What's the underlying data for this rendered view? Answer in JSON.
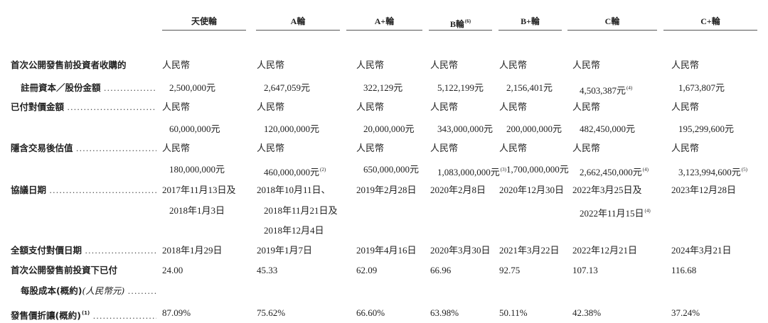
{
  "headers": [
    {
      "label": "天使輪",
      "sup": ""
    },
    {
      "label": "A輪",
      "sup": ""
    },
    {
      "label": "A+輪",
      "sup": ""
    },
    {
      "label": "B輪",
      "sup": "(6)"
    },
    {
      "label": "B+輪",
      "sup": ""
    },
    {
      "label": "C輪",
      "sup": ""
    },
    {
      "label": "C+輪",
      "sup": ""
    }
  ],
  "lines": [
    {
      "label": "首次公開發售前投資者收購的",
      "dots": false,
      "indent": false,
      "cells": [
        {
          "t": "人民幣"
        },
        {
          "t": "人民幣"
        },
        {
          "t": "人民幣"
        },
        {
          "t": "人民幣"
        },
        {
          "t": "人民幣"
        },
        {
          "t": "人民幣"
        },
        {
          "t": "人民幣"
        }
      ]
    },
    {
      "label": "註冊資本／股份金額",
      "dots": true,
      "indent": true,
      "cells": [
        {
          "t": "2,500,000元",
          "ind": true
        },
        {
          "t": "2,647,059元",
          "ind": true
        },
        {
          "t": "322,129元",
          "ind": true
        },
        {
          "t": "5,122,199元",
          "ind": true
        },
        {
          "t": "2,156,401元",
          "ind": true
        },
        {
          "t": "4,503,387元",
          "sup": "(4)",
          "ind": true
        },
        {
          "t": "1,673,807元",
          "ind": true
        }
      ]
    },
    {
      "label": "已付對價金額",
      "dots": true,
      "indent": false,
      "cells": [
        {
          "t": "人民幣"
        },
        {
          "t": "人民幣"
        },
        {
          "t": "人民幣"
        },
        {
          "t": "人民幣"
        },
        {
          "t": "人民幣"
        },
        {
          "t": "人民幣"
        },
        {
          "t": "人民幣"
        }
      ]
    },
    {
      "label": "",
      "dots": false,
      "indent": false,
      "cells": [
        {
          "t": "60,000,000元",
          "ind": true
        },
        {
          "t": "120,000,000元",
          "ind": true
        },
        {
          "t": "20,000,000元",
          "ind": true
        },
        {
          "t": "343,000,000元",
          "ind": true
        },
        {
          "t": "200,000,000元",
          "ind": true
        },
        {
          "t": "482,450,000元",
          "ind": true
        },
        {
          "t": "195,299,600元",
          "ind": true
        }
      ]
    },
    {
      "label": "隱含交易後估值",
      "dots": true,
      "indent": false,
      "cells": [
        {
          "t": "人民幣"
        },
        {
          "t": "人民幣"
        },
        {
          "t": "人民幣"
        },
        {
          "t": "人民幣"
        },
        {
          "t": "人民幣"
        },
        {
          "t": "人民幣"
        },
        {
          "t": "人民幣"
        }
      ]
    },
    {
      "label": "",
      "dots": false,
      "indent": false,
      "cells": [
        {
          "t": "180,000,000元",
          "ind": true
        },
        {
          "t": "460,000,000元",
          "sup": "(2)",
          "ind": true
        },
        {
          "t": "650,000,000元",
          "ind": true
        },
        {
          "t": "1,083,000,000元",
          "sup": "(3)",
          "ind": true
        },
        {
          "t": "1,700,000,000元",
          "ind": true
        },
        {
          "t": "2,662,450,000元",
          "sup": "(4)",
          "ind": true
        },
        {
          "t": "3,123,994,600元",
          "sup": "(5)",
          "ind": true
        }
      ]
    },
    {
      "label": "協議日期",
      "dots": true,
      "indent": false,
      "cells": [
        {
          "t": "2017年11月13日及"
        },
        {
          "t": "2018年10月11日、"
        },
        {
          "t": "2019年2月28日"
        },
        {
          "t": "2020年2月8日"
        },
        {
          "t": "2020年12月30日"
        },
        {
          "t": "2022年3月25日及"
        },
        {
          "t": "2023年12月28日"
        }
      ]
    },
    {
      "label": "",
      "dots": false,
      "indent": false,
      "cells": [
        {
          "t": "2018年1月3日",
          "ind": true
        },
        {
          "t": "2018年11月21日及",
          "ind": true
        },
        {
          "t": ""
        },
        {
          "t": ""
        },
        {
          "t": ""
        },
        {
          "t": "2022年11月15日",
          "sup": "(4)",
          "ind": true
        },
        {
          "t": ""
        }
      ]
    },
    {
      "label": "",
      "dots": false,
      "indent": false,
      "cells": [
        {
          "t": ""
        },
        {
          "t": "2018年12月4日",
          "ind": true
        },
        {
          "t": ""
        },
        {
          "t": ""
        },
        {
          "t": ""
        },
        {
          "t": ""
        },
        {
          "t": ""
        }
      ]
    },
    {
      "label": "全額支付對價日期",
      "dots": true,
      "indent": false,
      "cells": [
        {
          "t": "2018年1月29日"
        },
        {
          "t": "2019年1月7日"
        },
        {
          "t": "2019年4月16日"
        },
        {
          "t": "2020年3月30日"
        },
        {
          "t": "2021年3月22日"
        },
        {
          "t": "2022年12月21日"
        },
        {
          "t": "2024年3月21日"
        }
      ]
    },
    {
      "label": "首次公開發售前投資下已付",
      "dots": false,
      "indent": false,
      "cells": [
        {
          "t": "24.00"
        },
        {
          "t": "45.33"
        },
        {
          "t": "62.09"
        },
        {
          "t": "66.96"
        },
        {
          "t": "92.75"
        },
        {
          "t": "107.13"
        },
        {
          "t": "116.68"
        }
      ]
    },
    {
      "label": "每股成本(概約)",
      "italic": "(人民幣元)",
      "dots": true,
      "indent": true,
      "cells": []
    },
    {
      "label": "發售價折讓(概約)",
      "label_sup": "(1)",
      "dots": true,
      "indent": false,
      "cells": [
        {
          "t": "87.09%"
        },
        {
          "t": "75.62%"
        },
        {
          "t": "66.60%"
        },
        {
          "t": "63.98%"
        },
        {
          "t": "50.11%"
        },
        {
          "t": "42.38%"
        },
        {
          "t": "37.24%"
        }
      ]
    }
  ]
}
